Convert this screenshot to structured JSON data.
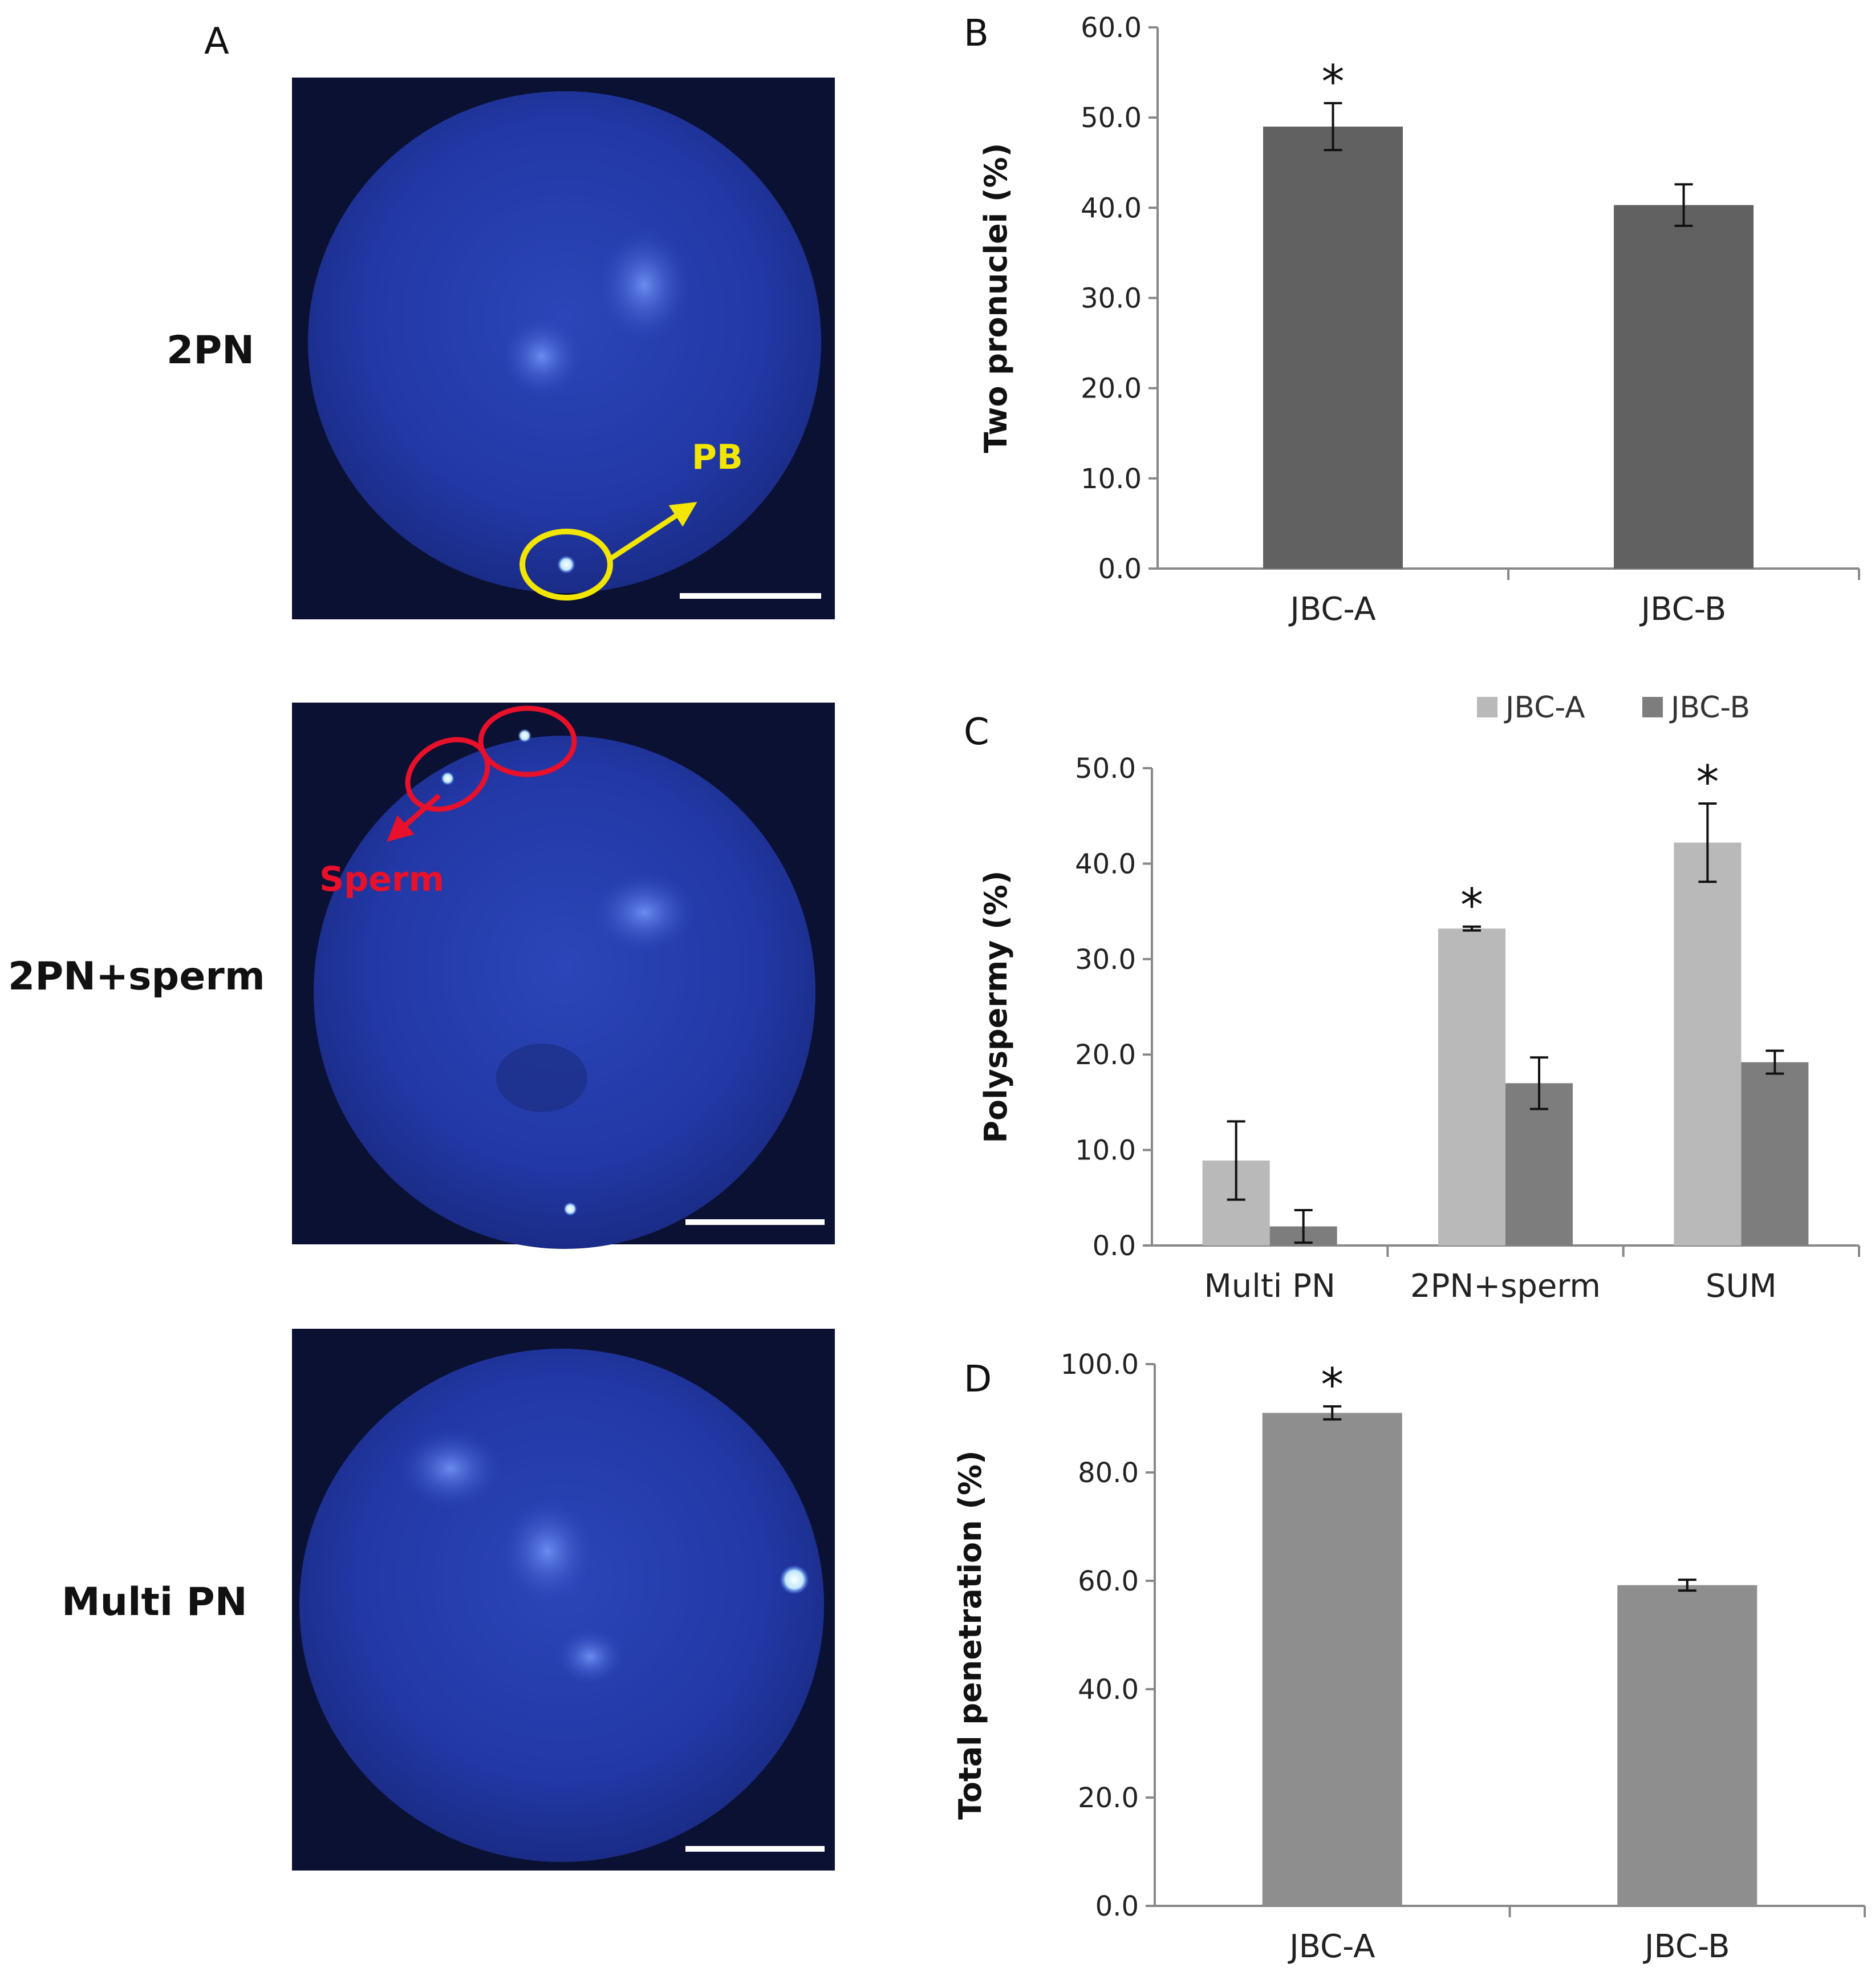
{
  "panel_a": {
    "letter": "A",
    "images": [
      {
        "row_label": "2PN",
        "annotation": "PB",
        "annotation_color": "#f2e600"
      },
      {
        "row_label": "2PN+sperm",
        "annotation": "Sperm",
        "annotation_color": "#e8102a"
      },
      {
        "row_label": "Multi PN",
        "annotation": "",
        "annotation_color": ""
      }
    ],
    "image_base_color": "#1c2f8c"
  },
  "chart_data": [
    {
      "panel": "B",
      "type": "bar",
      "categories": [
        "JBC-A",
        "JBC-B"
      ],
      "series": [
        {
          "values": [
            49.0,
            40.3
          ],
          "errors": [
            2.6,
            2.3
          ],
          "color": "#616161"
        }
      ],
      "significance": [
        "*",
        ""
      ],
      "ylabel": "Two pronuclei (%)",
      "ylim": [
        0,
        60
      ],
      "yticks": [
        "0.0",
        "10.0",
        "20.0",
        "30.0",
        "40.0",
        "50.0",
        "60.0"
      ],
      "grid": false
    },
    {
      "panel": "C",
      "type": "bar",
      "categories": [
        "Multi PN",
        "2PN+sperm",
        "SUM"
      ],
      "series": [
        {
          "name": "JBC-A",
          "values": [
            8.9,
            33.2,
            42.2
          ],
          "errors": [
            4.1,
            0.2,
            4.1
          ],
          "color": "#b9b9b9"
        },
        {
          "name": "JBC-B",
          "values": [
            2.0,
            17.0,
            19.2
          ],
          "errors": [
            1.7,
            2.7,
            1.2
          ],
          "color": "#7d7d7d"
        }
      ],
      "significance": [
        [
          "",
          ""
        ],
        [
          "*",
          ""
        ],
        [
          "*",
          ""
        ]
      ],
      "ylabel": "Polyspermy (%)",
      "ylim": [
        0,
        50
      ],
      "yticks": [
        "0.0",
        "10.0",
        "20.0",
        "30.0",
        "40.0",
        "50.0"
      ],
      "legend_position": "top-right",
      "grid": false
    },
    {
      "panel": "D",
      "type": "bar",
      "categories": [
        "JBC-A",
        "JBC-B"
      ],
      "series": [
        {
          "values": [
            91.0,
            59.2
          ],
          "errors": [
            1.2,
            1.0
          ],
          "color": "#8e8e8e"
        }
      ],
      "significance": [
        "*",
        ""
      ],
      "ylabel": "Total penetration (%)",
      "ylim": [
        0,
        100
      ],
      "yticks": [
        "0.0",
        "20.0",
        "40.0",
        "60.0",
        "80.0",
        "100.0"
      ],
      "grid": false
    }
  ]
}
